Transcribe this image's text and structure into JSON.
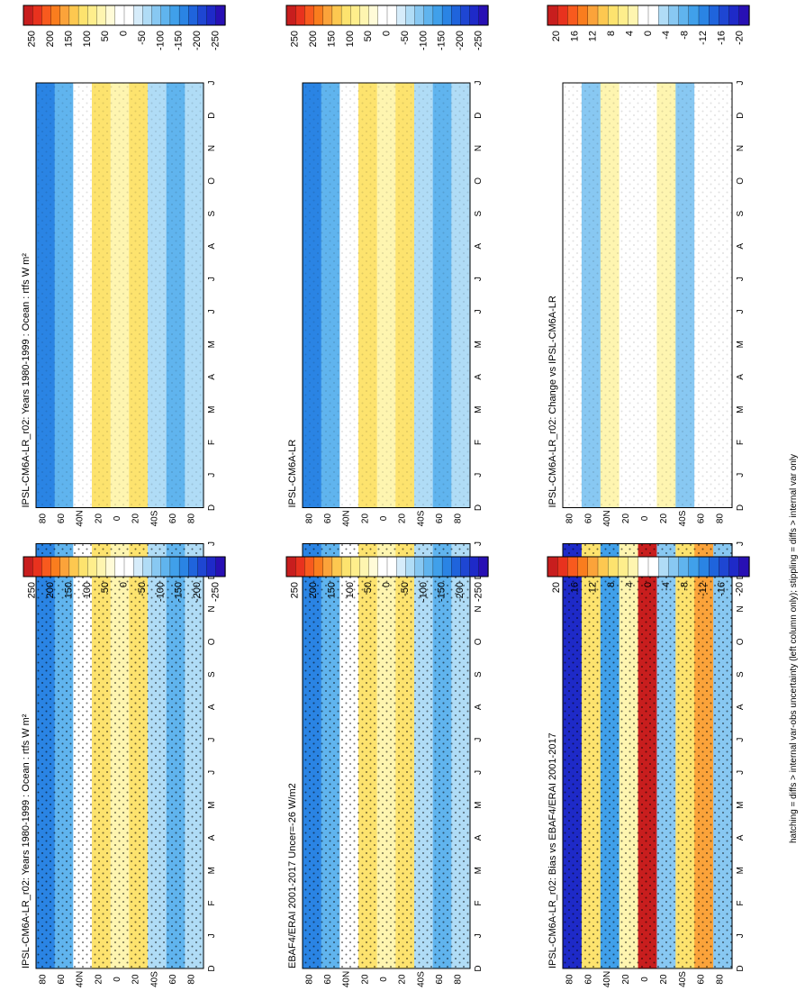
{
  "footnote": "hatching = diffs > internal var-obs uncertainty (left column only); stippling = diffs > internal var only",
  "time_ticks": [
    "D",
    "J",
    "F",
    "M",
    "A",
    "M",
    "J",
    "J",
    "A",
    "S",
    "O",
    "N",
    "D",
    "J"
  ],
  "lat_ticks": [
    "80",
    "60",
    "40N",
    "20",
    "0",
    "20",
    "40S",
    "60",
    "80"
  ],
  "colorbars": {
    "absolute": {
      "labels": [
        "250",
        "200",
        "150",
        "100",
        "50",
        "0",
        "-50",
        "-100",
        "-150",
        "-200",
        "-250"
      ],
      "colors": [
        "#c81e1e",
        "#e8321e",
        "#f85a1e",
        "#fa7d1e",
        "#fba33a",
        "#fdc850",
        "#fde36e",
        "#feee8c",
        "#fef5b0",
        "#fffbd8",
        "#ffffff",
        "#ffffff",
        "#d6ecfa",
        "#b0dcf6",
        "#88c8f2",
        "#60b4ee",
        "#40a0ea",
        "#2a84e4",
        "#1f64dc",
        "#1e46d2",
        "#1e2ac8",
        "#2810b4"
      ]
    },
    "difference": {
      "labels": [
        "20",
        "16",
        "12",
        "8",
        "4",
        "0",
        "-4",
        "-8",
        "-12",
        "-16",
        "-20"
      ],
      "colors": [
        "#c81e1e",
        "#e8321e",
        "#f85a1e",
        "#fa7d1e",
        "#fba33a",
        "#fdc850",
        "#fde36e",
        "#feee8c",
        "#fef5b0",
        "#ffffff",
        "#ffffff",
        "#b0dcf6",
        "#88c8f2",
        "#60b4ee",
        "#40a0ea",
        "#2a84e4",
        "#1f64dc",
        "#1e46d2",
        "#1e2ac8",
        "#2810b4"
      ]
    }
  },
  "chart_data": [
    {
      "id": "model-left",
      "type": "heatmap",
      "title": "IPSL-CM6A-LR_r02: Years 1980-1999 : Ocean : rtfs W m²",
      "x": "month (D..J)",
      "y": "latitude",
      "colorbar": "absolute",
      "summary_rows": [
        {
          "lat": "80N",
          "value": -150
        },
        {
          "lat": "60N",
          "value": -100
        },
        {
          "lat": "40N",
          "value": 0
        },
        {
          "lat": "20N",
          "value": 100
        },
        {
          "lat": "0",
          "value": 50
        },
        {
          "lat": "20S",
          "value": 100
        },
        {
          "lat": "40S",
          "value": -50
        },
        {
          "lat": "60S",
          "value": -100
        },
        {
          "lat": "80S",
          "value": -50
        }
      ]
    },
    {
      "id": "model-right",
      "type": "heatmap",
      "title": "IPSL-CM6A-LR_r02: Years 1980-1999 : Ocean : rtfs W m²",
      "x": "month (D..J)",
      "y": "latitude",
      "colorbar": "absolute",
      "summary_rows": [
        {
          "lat": "80N",
          "value": -150
        },
        {
          "lat": "60N",
          "value": -100
        },
        {
          "lat": "40N",
          "value": 0
        },
        {
          "lat": "20N",
          "value": 100
        },
        {
          "lat": "0",
          "value": 50
        },
        {
          "lat": "20S",
          "value": 100
        },
        {
          "lat": "40S",
          "value": -50
        },
        {
          "lat": "60S",
          "value": -100
        },
        {
          "lat": "80S",
          "value": -50
        }
      ]
    },
    {
      "id": "obs-left",
      "type": "heatmap",
      "title": "EBAF4/ERAI 2001-2017 Uncer=-26 W/m2",
      "x": "month (D..J)",
      "y": "latitude",
      "colorbar": "absolute",
      "summary_rows": [
        {
          "lat": "80N",
          "value": -150
        },
        {
          "lat": "60N",
          "value": -100
        },
        {
          "lat": "40N",
          "value": 0
        },
        {
          "lat": "20N",
          "value": 100
        },
        {
          "lat": "0",
          "value": 50
        },
        {
          "lat": "20S",
          "value": 100
        },
        {
          "lat": "40S",
          "value": -50
        },
        {
          "lat": "60S",
          "value": -100
        },
        {
          "lat": "80S",
          "value": -50
        }
      ]
    },
    {
      "id": "model-right-2",
      "type": "heatmap",
      "title": "IPSL-CM6A-LR",
      "x": "month (D..J)",
      "y": "latitude",
      "colorbar": "absolute",
      "summary_rows": [
        {
          "lat": "80N",
          "value": -150
        },
        {
          "lat": "60N",
          "value": -100
        },
        {
          "lat": "40N",
          "value": 0
        },
        {
          "lat": "20N",
          "value": 100
        },
        {
          "lat": "0",
          "value": 50
        },
        {
          "lat": "20S",
          "value": 100
        },
        {
          "lat": "40S",
          "value": -50
        },
        {
          "lat": "60S",
          "value": -100
        },
        {
          "lat": "80S",
          "value": -50
        }
      ]
    },
    {
      "id": "bias-left",
      "type": "heatmap",
      "title": "IPSL-CM6A-LR_r02: Bias vs EBAF4/ERAI 2001-2017",
      "x": "month (D..J)",
      "y": "latitude",
      "colorbar": "difference",
      "summary_rows": [
        {
          "lat": "80N",
          "value": -16
        },
        {
          "lat": "60N",
          "value": 8
        },
        {
          "lat": "40N",
          "value": -8
        },
        {
          "lat": "20N",
          "value": 4
        },
        {
          "lat": "0",
          "value": 20
        },
        {
          "lat": "20S",
          "value": -4
        },
        {
          "lat": "40S",
          "value": 8
        },
        {
          "lat": "60S",
          "value": 12
        },
        {
          "lat": "80S",
          "value": -4
        }
      ]
    },
    {
      "id": "change-right",
      "type": "heatmap",
      "title": "IPSL-CM6A-LR_r02: Change vs IPSL-CM6A-LR",
      "x": "month (D..J)",
      "y": "latitude",
      "colorbar": "difference",
      "summary_rows": [
        {
          "lat": "80N",
          "value": 0
        },
        {
          "lat": "60N",
          "value": -4
        },
        {
          "lat": "40N",
          "value": 4
        },
        {
          "lat": "20N",
          "value": 0
        },
        {
          "lat": "0",
          "value": 0
        },
        {
          "lat": "20S",
          "value": 4
        },
        {
          "lat": "40S",
          "value": -4
        },
        {
          "lat": "60S",
          "value": 0
        },
        {
          "lat": "80S",
          "value": 0
        }
      ]
    }
  ]
}
